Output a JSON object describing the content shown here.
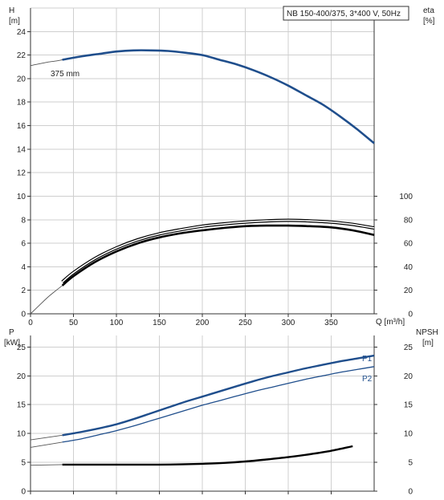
{
  "title": "NB 150-400/375, 3*400 V, 50Hz",
  "colors": {
    "head": "#1f4e8c",
    "eff": "#000000",
    "power": "#1f4e8c",
    "npsh": "#000000",
    "thin": "#555555",
    "grid": "#cfcfcf"
  },
  "chart_data": [
    {
      "type": "line",
      "panel": "head-efficiency",
      "title": "NB 150-400/375, 3*400 V, 50Hz",
      "xlabel": "Q [m³/h]",
      "ylabel": "H",
      "yunit": "[m]",
      "y2label": "eta",
      "y2unit": "[%]",
      "xlim": [
        0,
        400
      ],
      "ylim": [
        0,
        26
      ],
      "y2lim": [
        0,
        100
      ],
      "xticks": [
        "0",
        "50",
        "100",
        "150",
        "200",
        "250",
        "300",
        "350"
      ],
      "yticks": [
        "0",
        "2",
        "4",
        "6",
        "8",
        "10",
        "12",
        "14",
        "16",
        "18",
        "20",
        "22",
        "24"
      ],
      "y2ticks": [
        "0",
        "20",
        "40",
        "60",
        "80",
        "100"
      ],
      "grid": true,
      "series": [
        {
          "name": "375 mm",
          "axis": "y",
          "style": "bold",
          "x": [
            37,
            60,
            80,
            100,
            120,
            140,
            160,
            180,
            200,
            220,
            240,
            260,
            280,
            300,
            320,
            340,
            360,
            380,
            400
          ],
          "y": [
            21.6,
            21.9,
            22.1,
            22.3,
            22.4,
            22.4,
            22.35,
            22.2,
            22.0,
            21.6,
            21.2,
            20.7,
            20.1,
            19.4,
            18.6,
            17.8,
            16.8,
            15.7,
            14.5
          ]
        },
        {
          "axis": "y",
          "style": "thin",
          "x": [
            0,
            10,
            20,
            30,
            37
          ],
          "y": [
            21.1,
            21.25,
            21.4,
            21.5,
            21.6
          ]
        },
        {
          "axis": "y2",
          "style": "bold",
          "x": [
            37,
            50,
            75,
            100,
            125,
            150,
            175,
            200,
            225,
            250,
            275,
            300,
            325,
            350,
            375,
            400
          ],
          "y": [
            24,
            32,
            44,
            53,
            60,
            65,
            68.5,
            71,
            73,
            74.5,
            75,
            75,
            74.5,
            73.5,
            71,
            67
          ]
        },
        {
          "axis": "y2",
          "style": "double",
          "x": [
            37,
            50,
            75,
            100,
            125,
            150,
            175,
            200,
            225,
            250,
            275,
            300,
            325,
            350,
            375,
            400
          ],
          "y": [
            27,
            35,
            47,
            56,
            63,
            68,
            71.5,
            74.5,
            76.5,
            78,
            79,
            79.5,
            79,
            78,
            76,
            73
          ]
        },
        {
          "axis": "y2",
          "style": "thin",
          "x": [
            0,
            10,
            20,
            30,
            37
          ],
          "y": [
            0,
            7,
            14,
            20,
            24
          ]
        }
      ]
    },
    {
      "type": "line",
      "panel": "power-npsh",
      "xlabel": "",
      "ylabel": "P",
      "yunit": "[kW]",
      "y2label": "NPSH",
      "y2unit": "[m]",
      "xlim": [
        0,
        400
      ],
      "ylim": [
        0,
        27
      ],
      "y2lim": [
        0,
        27
      ],
      "yticks": [
        "0",
        "5",
        "10",
        "15",
        "20",
        "25"
      ],
      "y2ticks": [
        "0",
        "5",
        "10",
        "15",
        "20",
        "25"
      ],
      "grid": true,
      "series": [
        {
          "name": "P1",
          "axis": "y",
          "style": "bold",
          "x": [
            37,
            60,
            80,
            100,
            120,
            140,
            160,
            180,
            200,
            220,
            240,
            260,
            280,
            300,
            320,
            340,
            360,
            380,
            400
          ],
          "y": [
            9.7,
            10.3,
            10.9,
            11.6,
            12.5,
            13.5,
            14.5,
            15.5,
            16.4,
            17.3,
            18.2,
            19.1,
            19.9,
            20.6,
            21.3,
            21.9,
            22.5,
            23.0,
            23.5
          ]
        },
        {
          "name": "P2",
          "axis": "y",
          "style": "thin",
          "x": [
            37,
            60,
            80,
            100,
            120,
            140,
            160,
            180,
            200,
            220,
            240,
            260,
            280,
            300,
            320,
            340,
            360,
            380,
            400
          ],
          "y": [
            8.5,
            9.1,
            9.8,
            10.5,
            11.3,
            12.2,
            13.1,
            14.0,
            14.9,
            15.7,
            16.5,
            17.3,
            18.0,
            18.7,
            19.4,
            20.0,
            20.6,
            21.1,
            21.6
          ]
        },
        {
          "axis": "y",
          "style": "thin",
          "x": [
            0,
            37
          ],
          "y": [
            8.9,
            9.7
          ]
        },
        {
          "axis": "y",
          "style": "thin",
          "x": [
            0,
            37
          ],
          "y": [
            7.6,
            8.5
          ]
        },
        {
          "axis": "y2",
          "style": "bold-black",
          "x": [
            37,
            75,
            100,
            125,
            150,
            175,
            200,
            225,
            250,
            275,
            300,
            325,
            350,
            375
          ],
          "y": [
            4.6,
            4.6,
            4.6,
            4.6,
            4.6,
            4.65,
            4.75,
            4.9,
            5.15,
            5.5,
            5.9,
            6.4,
            7.0,
            7.8
          ]
        },
        {
          "axis": "y2",
          "style": "thin",
          "x": [
            0,
            37
          ],
          "y": [
            4.5,
            4.6
          ]
        }
      ]
    }
  ]
}
